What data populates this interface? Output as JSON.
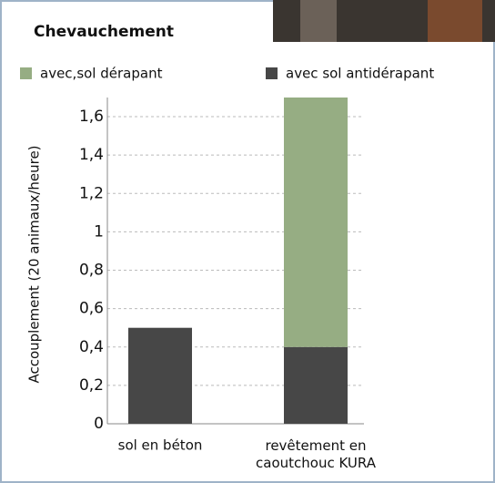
{
  "chart_data": {
    "type": "stacked-bar",
    "title": "Chevauchement",
    "y_label": "Accouplement (20 animaux/heure)",
    "categories": [
      "sol en béton",
      "revêtement en\ncaoutchouc KURA"
    ],
    "series": [
      {
        "name": "avec,sol dérapant",
        "color": "#96ad83",
        "values": [
          null,
          1.3
        ]
      },
      {
        "name": "avec sol antidérapant",
        "color": "#474747",
        "values": [
          0.5,
          0.4
        ]
      }
    ],
    "stack_order": [
      1,
      0
    ],
    "ylim": [
      0,
      1.7
    ],
    "yticks": [
      0,
      {
        "value": 0.2,
        "label": "0,2"
      },
      {
        "value": 0.4,
        "label": "0,4"
      },
      {
        "value": 0.6,
        "label": "0,6"
      },
      {
        "value": 0.8,
        "label": "0,8"
      },
      1,
      {
        "value": 1.2,
        "label": "1,2"
      },
      {
        "value": 1.4,
        "label": "1,4"
      },
      {
        "value": 1.6,
        "label": "1,6"
      }
    ],
    "grid": true
  }
}
